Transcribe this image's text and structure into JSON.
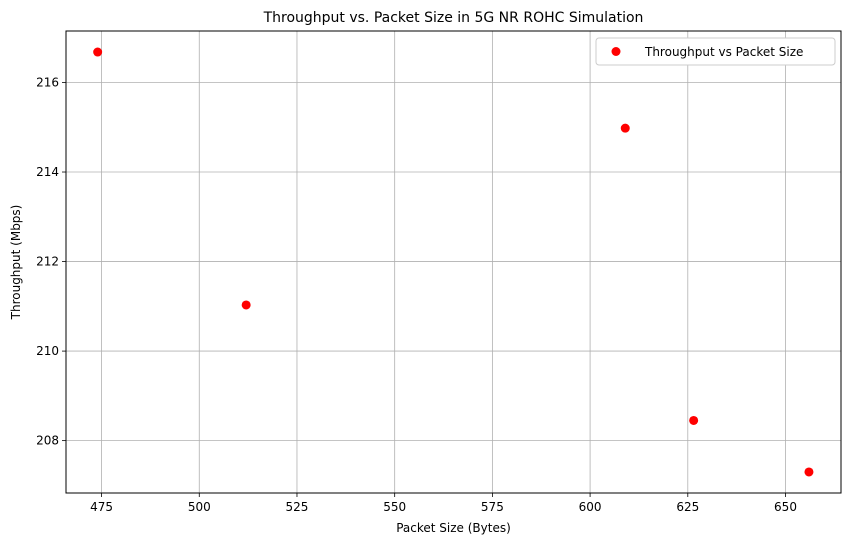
{
  "chart_data": {
    "type": "scatter",
    "title": "Throughput vs. Packet Size in 5G NR ROHC Simulation",
    "xlabel": "Packet Size (Bytes)",
    "ylabel": "Throughput (Mbps)",
    "xlim": [
      465.9,
      664.2
    ],
    "ylim": [
      206.83,
      217.15
    ],
    "xticks": [
      475,
      500,
      525,
      550,
      575,
      600,
      625,
      650
    ],
    "yticks": [
      208,
      210,
      212,
      214,
      216
    ],
    "grid": true,
    "legend": "top-right",
    "series": [
      {
        "name": "Throughput vs Packet Size",
        "color": "#ff0000",
        "points": [
          {
            "x": 474,
            "y": 216.68
          },
          {
            "x": 512,
            "y": 211.03
          },
          {
            "x": 609,
            "y": 214.98
          },
          {
            "x": 626.5,
            "y": 208.45
          },
          {
            "x": 656,
            "y": 207.3
          }
        ]
      }
    ]
  }
}
